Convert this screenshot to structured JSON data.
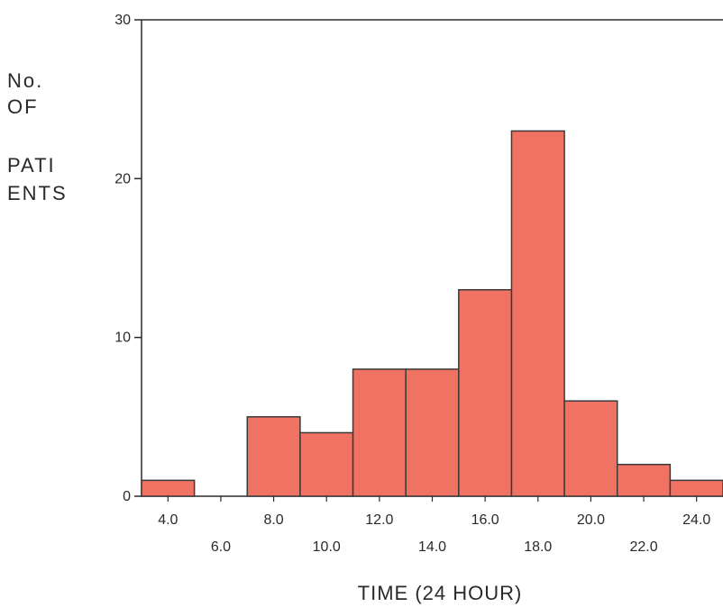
{
  "chart_data": {
    "type": "bar",
    "ylabel_lines": [
      "No.",
      "OF",
      "PATI",
      "ENTS"
    ],
    "xlabel": "TIME (24 HOUR)",
    "ylim": [
      0,
      30
    ],
    "y_ticks": [
      {
        "value": 0,
        "label": "0"
      },
      {
        "value": 10,
        "label": "10"
      },
      {
        "value": 20,
        "label": "20"
      },
      {
        "value": 30,
        "label": "30"
      }
    ],
    "x_ticks": [
      {
        "value": 4,
        "label": "4.0",
        "row": 1
      },
      {
        "value": 6,
        "label": "6.0",
        "row": 2
      },
      {
        "value": 8,
        "label": "8.0",
        "row": 1
      },
      {
        "value": 10,
        "label": "10.0",
        "row": 2
      },
      {
        "value": 12,
        "label": "12.0",
        "row": 1
      },
      {
        "value": 14,
        "label": "14.0",
        "row": 2
      },
      {
        "value": 16,
        "label": "16.0",
        "row": 1
      },
      {
        "value": 18,
        "label": "18.0",
        "row": 2
      },
      {
        "value": 20,
        "label": "20.0",
        "row": 1
      },
      {
        "value": 22,
        "label": "22.0",
        "row": 2
      },
      {
        "value": 24,
        "label": "24.0",
        "row": 1
      }
    ],
    "bins": [
      {
        "x": 4,
        "value": 1
      },
      {
        "x": 6,
        "value": 0
      },
      {
        "x": 8,
        "value": 5
      },
      {
        "x": 10,
        "value": 4
      },
      {
        "x": 12,
        "value": 8
      },
      {
        "x": 14,
        "value": 8
      },
      {
        "x": 16,
        "value": 13
      },
      {
        "x": 18,
        "value": 23
      },
      {
        "x": 20,
        "value": 6
      },
      {
        "x": 22,
        "value": 2
      },
      {
        "x": 24,
        "value": 1
      }
    ],
    "bin_width": 2,
    "colors": {
      "bar_fill": "#f07262",
      "bar_stroke": "#3a3a3a",
      "axis": "#2a2a2a"
    }
  }
}
